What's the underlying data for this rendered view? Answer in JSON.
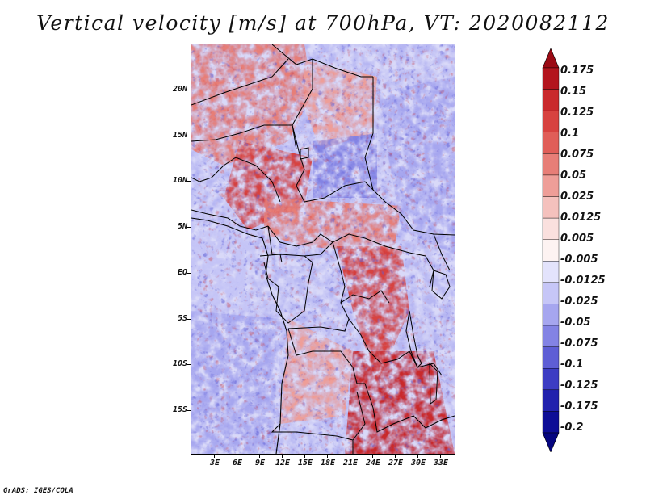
{
  "title": "Vertical velocity [m/s] at 700hPa, VT: 2020082112",
  "credit": "GrADS: IGES/COLA",
  "lat_labels": [
    "20N",
    "15N",
    "10N",
    "5N",
    "EQ",
    "5S",
    "10S",
    "15S"
  ],
  "lon_labels": [
    "3E",
    "6E",
    "9E",
    "12E",
    "15E",
    "18E",
    "21E",
    "24E",
    "27E",
    "30E",
    "33E"
  ],
  "colorbar": {
    "labels": [
      "0.175",
      "0.15",
      "0.125",
      "0.1",
      "0.075",
      "0.05",
      "0.025",
      "0.0125",
      "0.005",
      "-0.005",
      "-0.0125",
      "-0.025",
      "-0.05",
      "-0.075",
      "-0.1",
      "-0.125",
      "-0.175",
      "-0.2"
    ],
    "colors": [
      "#9b0a14",
      "#b3151d",
      "#c9292c",
      "#d7423f",
      "#e05e58",
      "#e77e77",
      "#ee9e98",
      "#f4c1bd",
      "#fae0de",
      "#fdf3f2",
      "#e3e3fc",
      "#c6c6f7",
      "#a6a6ef",
      "#8383e4",
      "#5e5ed5",
      "#3c3cc3",
      "#2121ad",
      "#0d0d96",
      "#050580"
    ]
  },
  "map_extent": {
    "lon": [
      0,
      35
    ],
    "lat": [
      -20,
      24.5
    ]
  }
}
